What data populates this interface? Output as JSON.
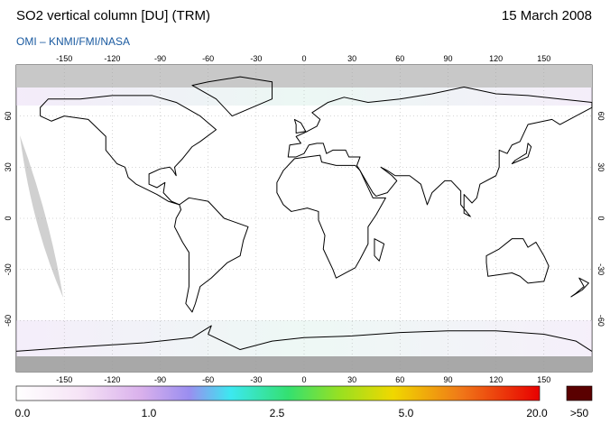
{
  "header": {
    "title": "SO2 vertical column [DU] (TRM)",
    "date": "15 March 2008",
    "source": "OMI – KNMI/FMI/NASA"
  },
  "map": {
    "longitude_ticks": [
      -150,
      -120,
      -90,
      -60,
      -30,
      0,
      30,
      60,
      90,
      120,
      150
    ],
    "latitude_ticks": [
      60,
      30,
      0,
      -30,
      -60
    ]
  },
  "colorbar": {
    "labels": [
      "0.0",
      "1.0",
      "2.5",
      "5.0",
      "20.0"
    ],
    "overflow_label": ">50"
  }
}
